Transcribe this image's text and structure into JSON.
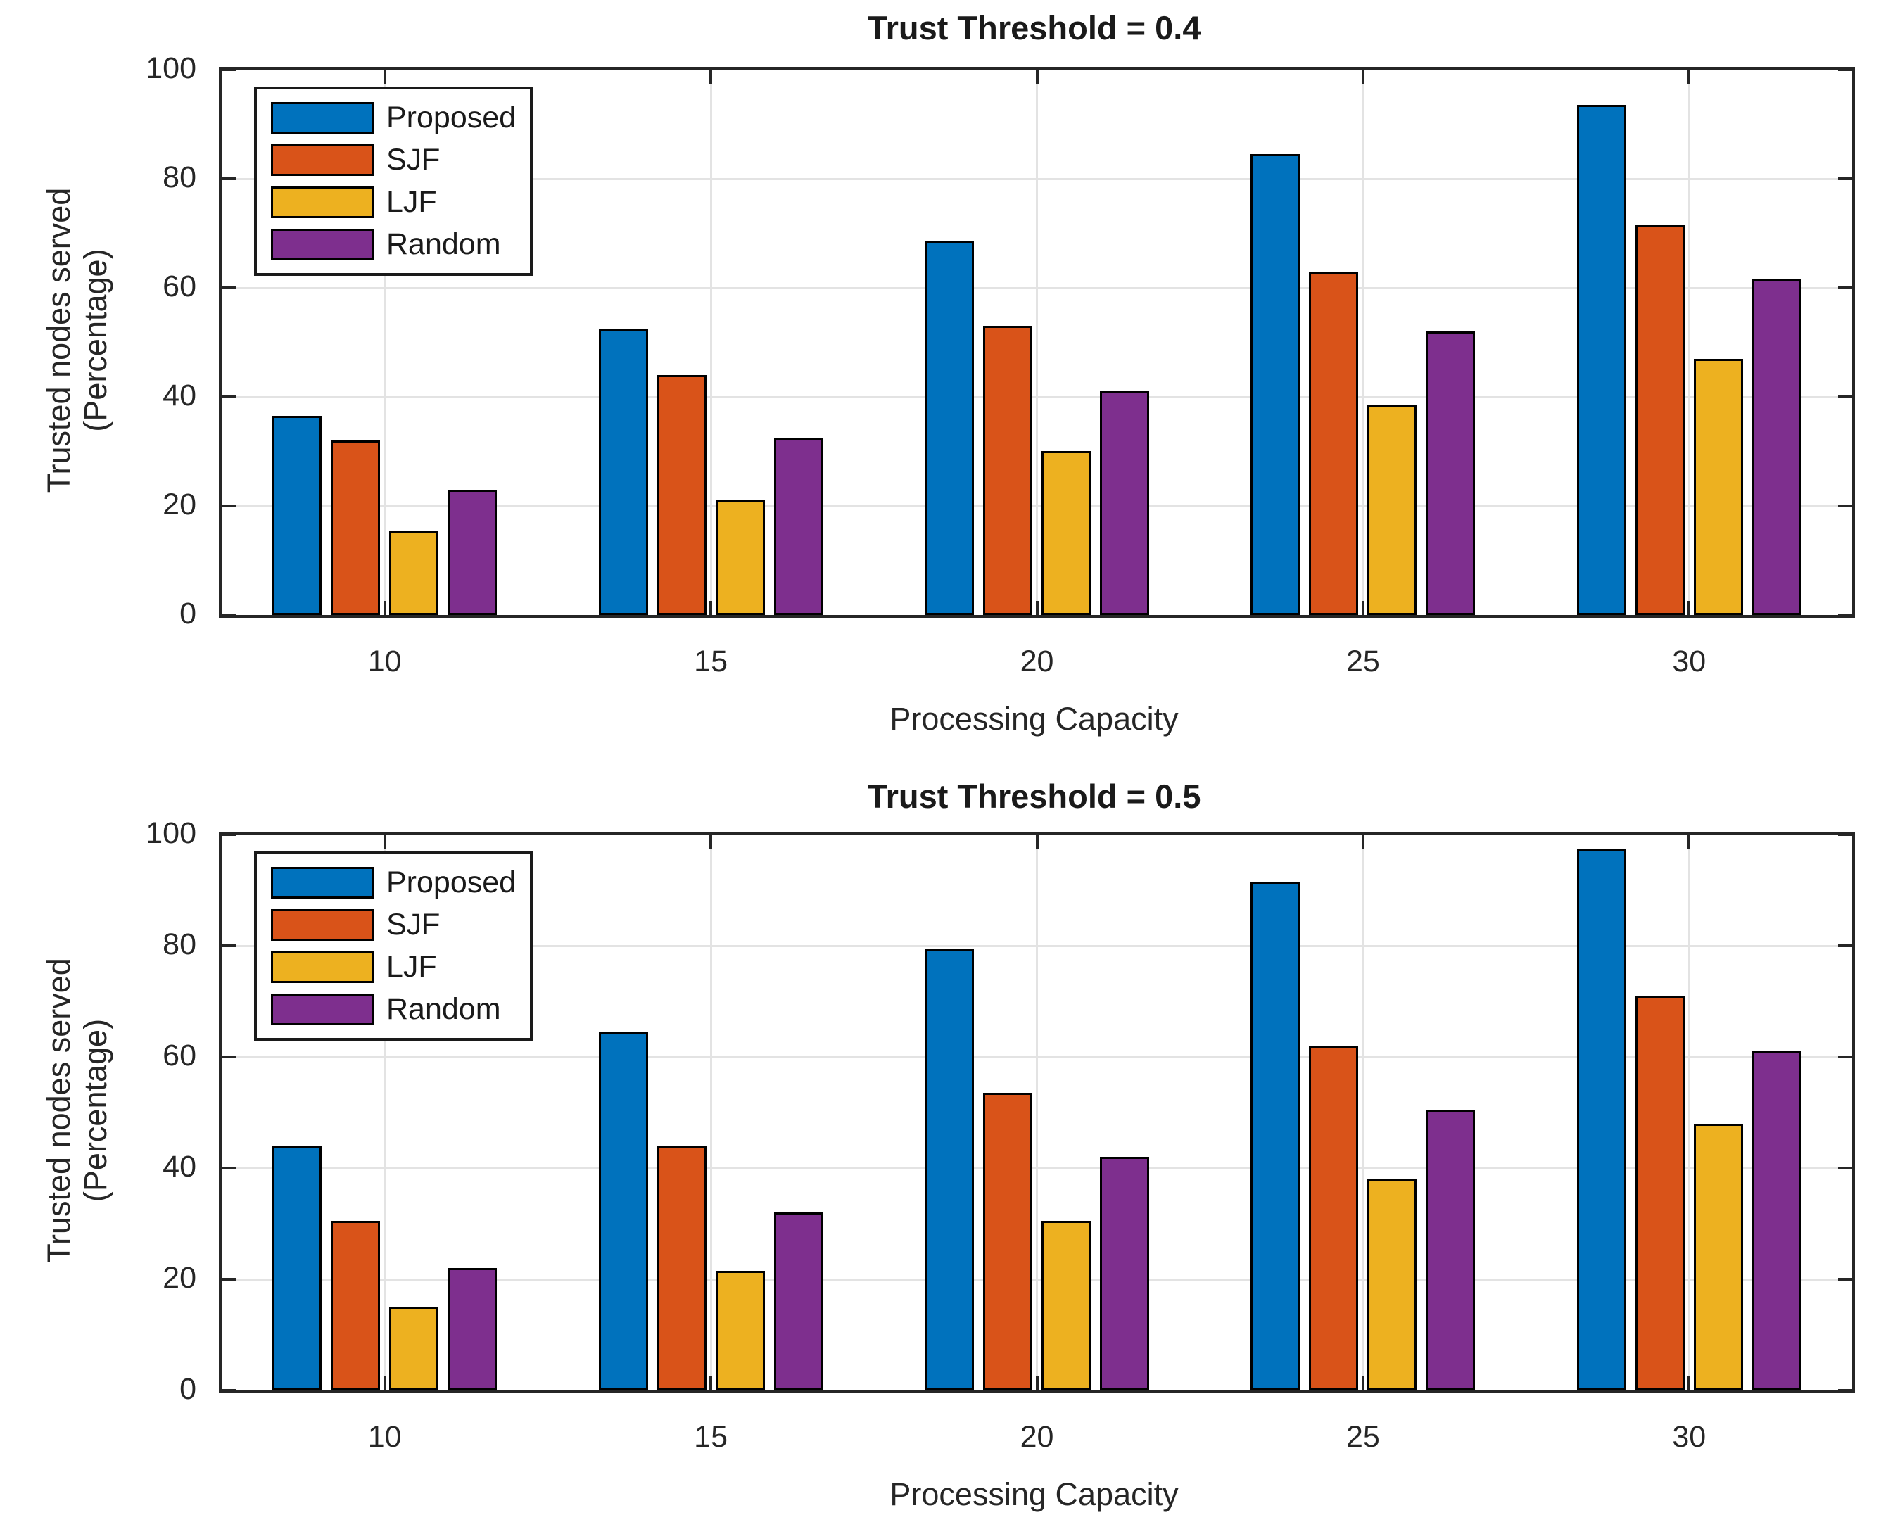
{
  "figure": {
    "background": "#ffffff"
  },
  "colors": {
    "proposed": "#0072BD",
    "sjf": "#D95319",
    "ljf": "#EDB120",
    "random": "#7E2F8E",
    "bar_edge": "#000000",
    "axis": "#262626",
    "grid": "#e3e3e3",
    "text": "#262626",
    "background": "#ffffff"
  },
  "chart_data": [
    {
      "type": "bar",
      "title": "Trust Threshold = 0.4",
      "xlabel": "Processing Capacity",
      "ylabel": "Trusted nodes served\n(Percentage)",
      "categories": [
        "10",
        "15",
        "20",
        "25",
        "30"
      ],
      "x_numeric": [
        10,
        15,
        20,
        25,
        30
      ],
      "ylim": [
        0,
        100
      ],
      "yticks": [
        0,
        20,
        40,
        60,
        80,
        100
      ],
      "grid": true,
      "legend_position": "top-left",
      "legend_labels": [
        "Proposed",
        "SJF",
        "LJF",
        "Random"
      ],
      "series": [
        {
          "name": "Proposed",
          "color": "#0072BD",
          "values": [
            36.5,
            52.5,
            68.5,
            84.5,
            93.5
          ]
        },
        {
          "name": "SJF",
          "color": "#D95319",
          "values": [
            32,
            44,
            53,
            63,
            71.5
          ]
        },
        {
          "name": "LJF",
          "color": "#EDB120",
          "values": [
            15.5,
            21,
            30,
            38.5,
            47
          ]
        },
        {
          "name": "Random",
          "color": "#7E2F8E",
          "values": [
            23,
            32.5,
            41,
            52,
            61.5
          ]
        }
      ]
    },
    {
      "type": "bar",
      "title": "Trust Threshold = 0.5",
      "xlabel": "Processing Capacity",
      "ylabel": "Trusted nodes served\n(Percentage)",
      "categories": [
        "10",
        "15",
        "20",
        "25",
        "30"
      ],
      "x_numeric": [
        10,
        15,
        20,
        25,
        30
      ],
      "ylim": [
        0,
        100
      ],
      "yticks": [
        0,
        20,
        40,
        60,
        80,
        100
      ],
      "grid": true,
      "legend_position": "top-left",
      "legend_labels": [
        "Proposed",
        "SJF",
        "LJF",
        "Random"
      ],
      "series": [
        {
          "name": "Proposed",
          "color": "#0072BD",
          "values": [
            44,
            64.5,
            79.5,
            91.5,
            97.5
          ]
        },
        {
          "name": "SJF",
          "color": "#D95319",
          "values": [
            30.5,
            44,
            53.5,
            62,
            71
          ]
        },
        {
          "name": "LJF",
          "color": "#EDB120",
          "values": [
            15,
            21.5,
            30.5,
            38,
            48
          ]
        },
        {
          "name": "Random",
          "color": "#7E2F8E",
          "values": [
            22,
            32,
            42,
            50.5,
            61
          ]
        }
      ]
    }
  ]
}
